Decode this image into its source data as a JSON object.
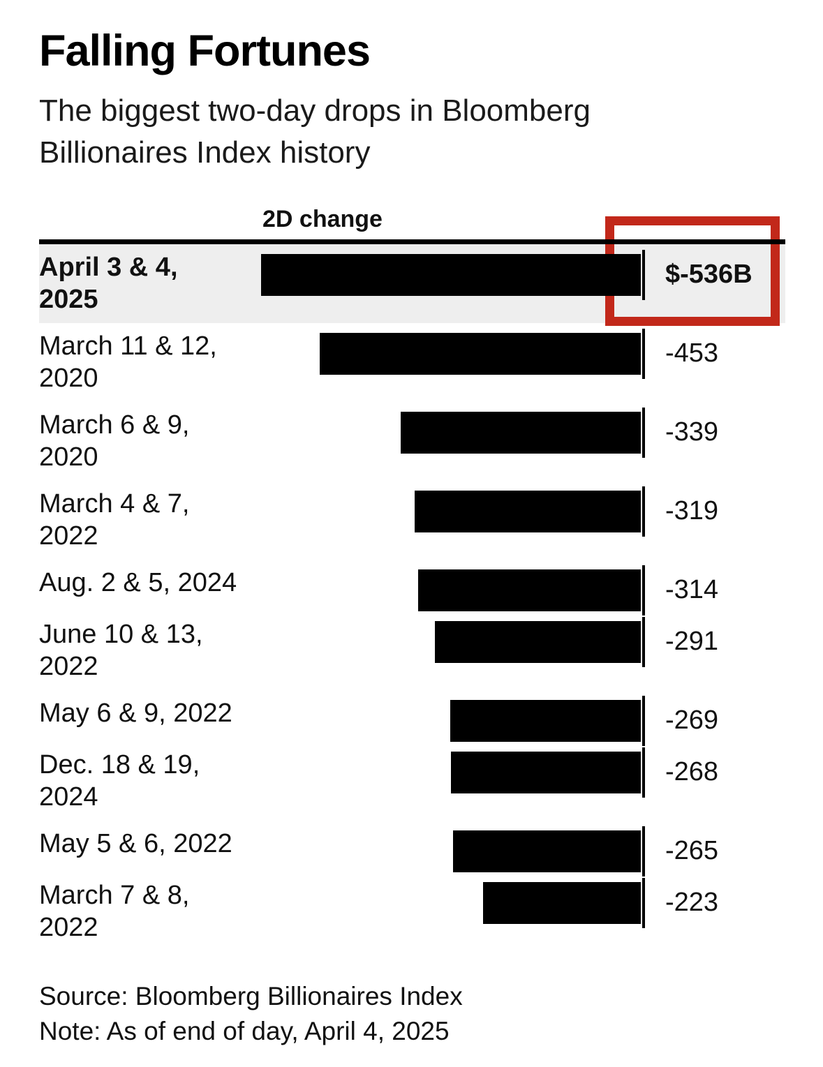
{
  "page": {
    "title": "Falling Fortunes",
    "subtitle_lines": [
      "The biggest two-day drops in Bloomberg",
      "Billionaires Index history"
    ],
    "source": "Source: Bloomberg Billionaires Index",
    "note": "Note: As of end of day, April 4, 2025"
  },
  "chart_data": {
    "type": "bar",
    "orientation": "horizontal",
    "title": "Falling Fortunes",
    "subtitle": "The biggest two-day drops in Bloomberg Billionaires Index history",
    "column_header": "2D change",
    "xlabel": "",
    "ylabel": "",
    "unit": "USD billions",
    "axis_range": [
      -536,
      0
    ],
    "grid": false,
    "legend": "none",
    "categories": [
      "April 3 & 4, 2025",
      "March 11 & 12, 2020",
      "March 6 & 9, 2020",
      "March 4 & 7, 2022",
      "Aug. 2 & 5, 2024",
      "June 10 & 13, 2022",
      "May 6 & 9, 2022",
      "Dec. 18 & 19, 2024",
      "May 5 & 6, 2022",
      "March 7 & 8, 2022"
    ],
    "values": [
      -536,
      -453,
      -339,
      -319,
      -314,
      -291,
      -269,
      -268,
      -265,
      -223
    ],
    "value_labels": [
      "$-536B",
      "-453",
      "-339",
      "-319",
      "-314",
      "-291",
      "-269",
      "-268",
      "-265",
      "-223"
    ],
    "highlighted_index": 0,
    "annotation": {
      "type": "rectangle-outline",
      "around_value": "$-536B",
      "color": "#c2281a"
    },
    "colors": {
      "bar": "#000000",
      "highlight_row_bg": "#eeeeee",
      "annotation_red": "#c2281a",
      "text": "#111111",
      "divider": "#000000"
    },
    "rows": [
      {
        "label_lines": [
          "April 3 & 4,",
          "2025"
        ],
        "value": -536,
        "value_label": "$-536B",
        "highlight": true
      },
      {
        "label_lines": [
          "March 11 & 12,",
          "2020"
        ],
        "value": -453,
        "value_label": "-453",
        "highlight": false
      },
      {
        "label_lines": [
          "March 6 & 9,",
          "2020"
        ],
        "value": -339,
        "value_label": "-339",
        "highlight": false
      },
      {
        "label_lines": [
          "March 4 & 7,",
          "2022"
        ],
        "value": -319,
        "value_label": "-319",
        "highlight": false
      },
      {
        "label_lines": [
          "Aug. 2 & 5, 2024"
        ],
        "value": -314,
        "value_label": "-314",
        "highlight": false
      },
      {
        "label_lines": [
          "June 10 & 13,",
          "2022"
        ],
        "value": -291,
        "value_label": "-291",
        "highlight": false
      },
      {
        "label_lines": [
          "May 6 & 9, 2022"
        ],
        "value": -269,
        "value_label": "-269",
        "highlight": false
      },
      {
        "label_lines": [
          "Dec. 18 & 19,",
          "2024"
        ],
        "value": -268,
        "value_label": "-268",
        "highlight": false
      },
      {
        "label_lines": [
          "May 5 & 6, 2022"
        ],
        "value": -265,
        "value_label": "-265",
        "highlight": false
      },
      {
        "label_lines": [
          "March 7 & 8,",
          "2022"
        ],
        "value": -223,
        "value_label": "-223",
        "highlight": false
      }
    ]
  }
}
